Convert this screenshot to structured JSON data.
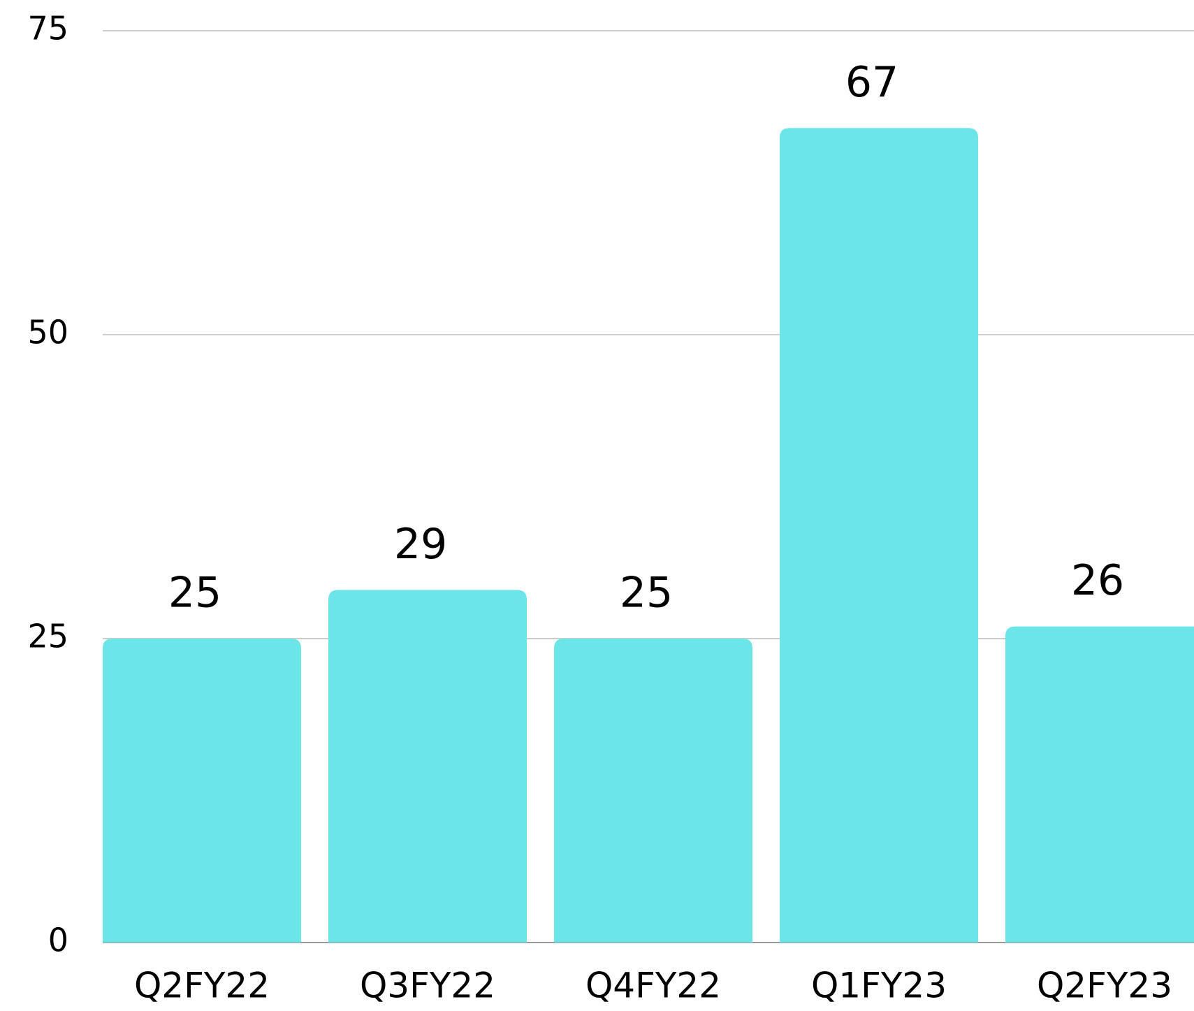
{
  "chart_data": {
    "type": "bar",
    "categories": [
      "Q2FY22",
      "Q3FY22",
      "Q4FY22",
      "Q1FY23",
      "Q2FY23"
    ],
    "values": [
      25,
      29,
      25,
      67,
      26
    ],
    "color": "#6ce5e8",
    "ylim": [
      0,
      75
    ],
    "yticks": [
      0,
      25,
      50,
      75
    ],
    "grid": true
  }
}
